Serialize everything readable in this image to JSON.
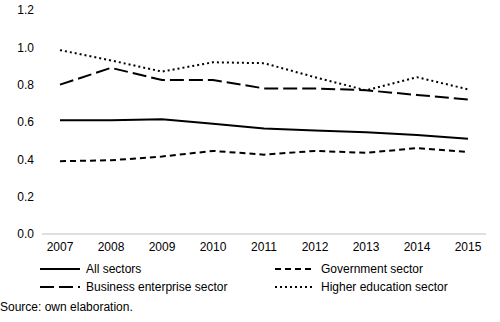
{
  "chart_data": {
    "type": "line",
    "categories": [
      "2007",
      "2008",
      "2009",
      "2010",
      "2011",
      "2012",
      "2013",
      "2014",
      "2015"
    ],
    "series": [
      {
        "name": "All sectors",
        "color": "#000000",
        "line_style": "solid",
        "values": [
          0.61,
          0.61,
          0.615,
          0.59,
          0.565,
          0.555,
          0.545,
          0.53,
          0.51
        ]
      },
      {
        "name": "Government sector",
        "color": "#000000",
        "line_style": "dashed",
        "values": [
          0.39,
          0.395,
          0.415,
          0.445,
          0.425,
          0.445,
          0.435,
          0.46,
          0.44
        ]
      },
      {
        "name": "Business enterprise sector",
        "color": "#000000",
        "line_style": "long_dashed",
        "values": [
          0.8,
          0.89,
          0.825,
          0.825,
          0.78,
          0.78,
          0.77,
          0.745,
          0.72
        ]
      },
      {
        "name": "Higher education sector",
        "color": "#000000",
        "line_style": "dotted",
        "values": [
          0.985,
          0.93,
          0.87,
          0.92,
          0.915,
          0.84,
          0.77,
          0.84,
          0.775
        ]
      }
    ],
    "ylim": [
      0,
      1.2
    ],
    "yticks": [
      {
        "value": 0,
        "label": "0.0"
      },
      0.2,
      0.4,
      0.6,
      0.8,
      {
        "value": 1,
        "label": "1.0"
      },
      1.2
    ],
    "grid": false,
    "legend": "bottom",
    "annotation": "Source: own elaboration."
  }
}
